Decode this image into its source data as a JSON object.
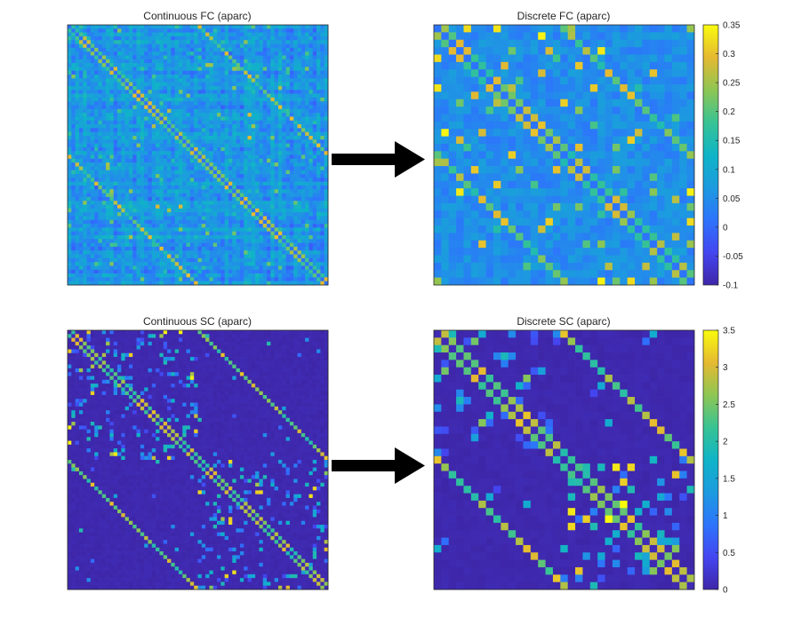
{
  "colormap": "parula",
  "arrow_color": "#000000",
  "chart_data": [
    {
      "id": "fc_continuous",
      "type": "heatmap",
      "title": "Continuous FC (aparc)",
      "grid_size": 68,
      "style": "dense-noisy",
      "diagonal_emphasis": true,
      "color_range": [
        -0.1,
        0.35
      ]
    },
    {
      "id": "fc_discrete",
      "type": "heatmap",
      "title": "Discrete FC (aparc)",
      "grid_size": 35,
      "style": "mid-blue-noisy",
      "diagonal_emphasis": true,
      "color_range": [
        -0.1,
        0.35
      ],
      "colorbar": {
        "ticks": [
          "0.35",
          "0.3",
          "0.25",
          "0.2",
          "0.15",
          "0.1",
          "0.05",
          "0",
          "-0.05",
          "-0.1"
        ],
        "values": [
          0.35,
          0.3,
          0.25,
          0.2,
          0.15,
          0.1,
          0.05,
          0,
          -0.05,
          -0.1
        ]
      }
    },
    {
      "id": "sc_continuous",
      "type": "heatmap",
      "title": "Continuous SC (aparc)",
      "grid_size": 68,
      "style": "sparse-block",
      "diagonal_emphasis": true,
      "color_range": [
        0,
        3.5
      ]
    },
    {
      "id": "sc_discrete",
      "type": "heatmap",
      "title": "Discrete SC (aparc)",
      "grid_size": 35,
      "style": "sparse-block",
      "diagonal_emphasis": true,
      "color_range": [
        0,
        3.5
      ],
      "colorbar": {
        "ticks": [
          "3.5",
          "3",
          "2.5",
          "2",
          "1.5",
          "1",
          "0.5",
          "0"
        ],
        "values": [
          3.5,
          3,
          2.5,
          2,
          1.5,
          1,
          0.5,
          0
        ]
      }
    }
  ]
}
